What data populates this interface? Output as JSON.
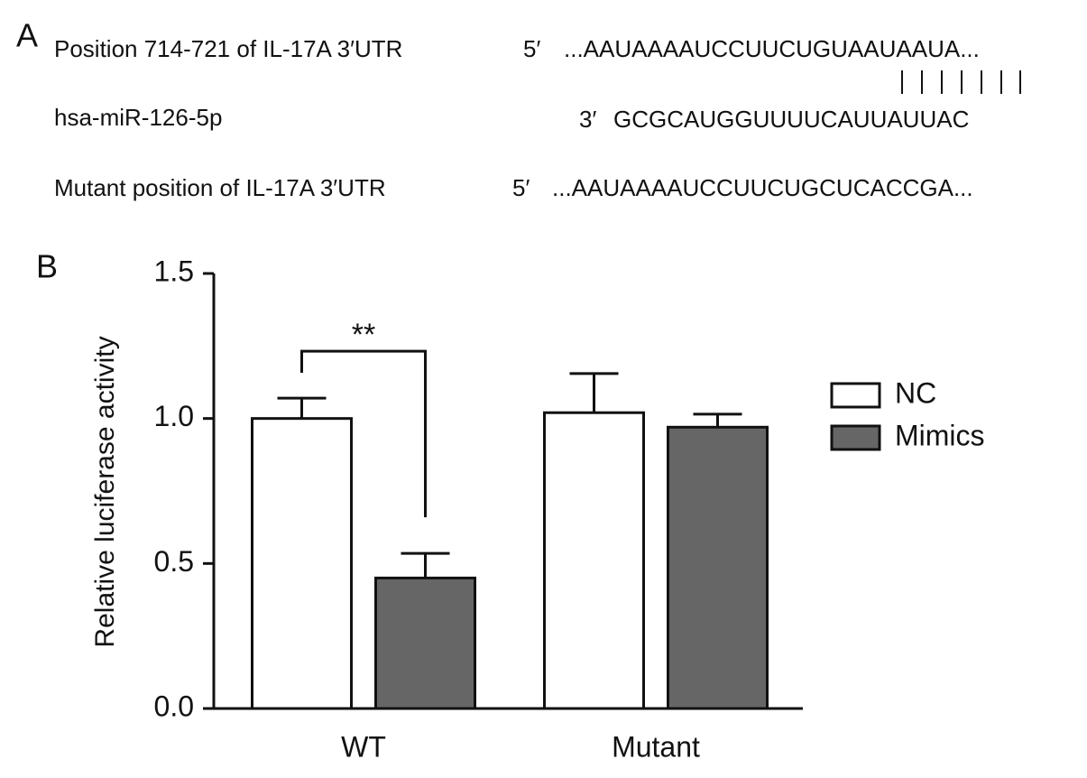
{
  "panel_a": {
    "label": "A",
    "rows": [
      {
        "name": "Position 714-721 of IL-17A 3′UTR",
        "end": "5′",
        "sequence": "...AAUAAAAUCCUUCUGUAAUAAUA..."
      },
      {
        "name": "hsa-miR-126-5p",
        "end": "3′",
        "sequence": "GCGCAUGGUUUUCAUUAUUAC"
      },
      {
        "name": "Mutant position of IL-17A 3′UTR",
        "end": "5′",
        "sequence": "...AAUAAAAUCCUUCUGCUCACCGA..."
      }
    ]
  },
  "chart_data": {
    "type": "bar",
    "panel_label": "B",
    "y_label": "Relative luciferase activity",
    "categories": [
      "WT",
      "Mutant"
    ],
    "series": [
      {
        "name": "NC",
        "color": "#ffffff",
        "values": [
          1.0,
          1.02
        ],
        "errors": [
          0.07,
          0.135
        ]
      },
      {
        "name": "Mimics",
        "color": "#666666",
        "values": [
          0.45,
          0.97
        ],
        "errors": [
          0.085,
          0.045
        ]
      }
    ],
    "ylim": [
      0,
      1.5
    ],
    "yticks": [
      {
        "value": 0,
        "label": "0.0"
      },
      0.5,
      {
        "value": 1,
        "label": "1.0"
      },
      1.5
    ],
    "annotation": "**",
    "legend": "right"
  }
}
